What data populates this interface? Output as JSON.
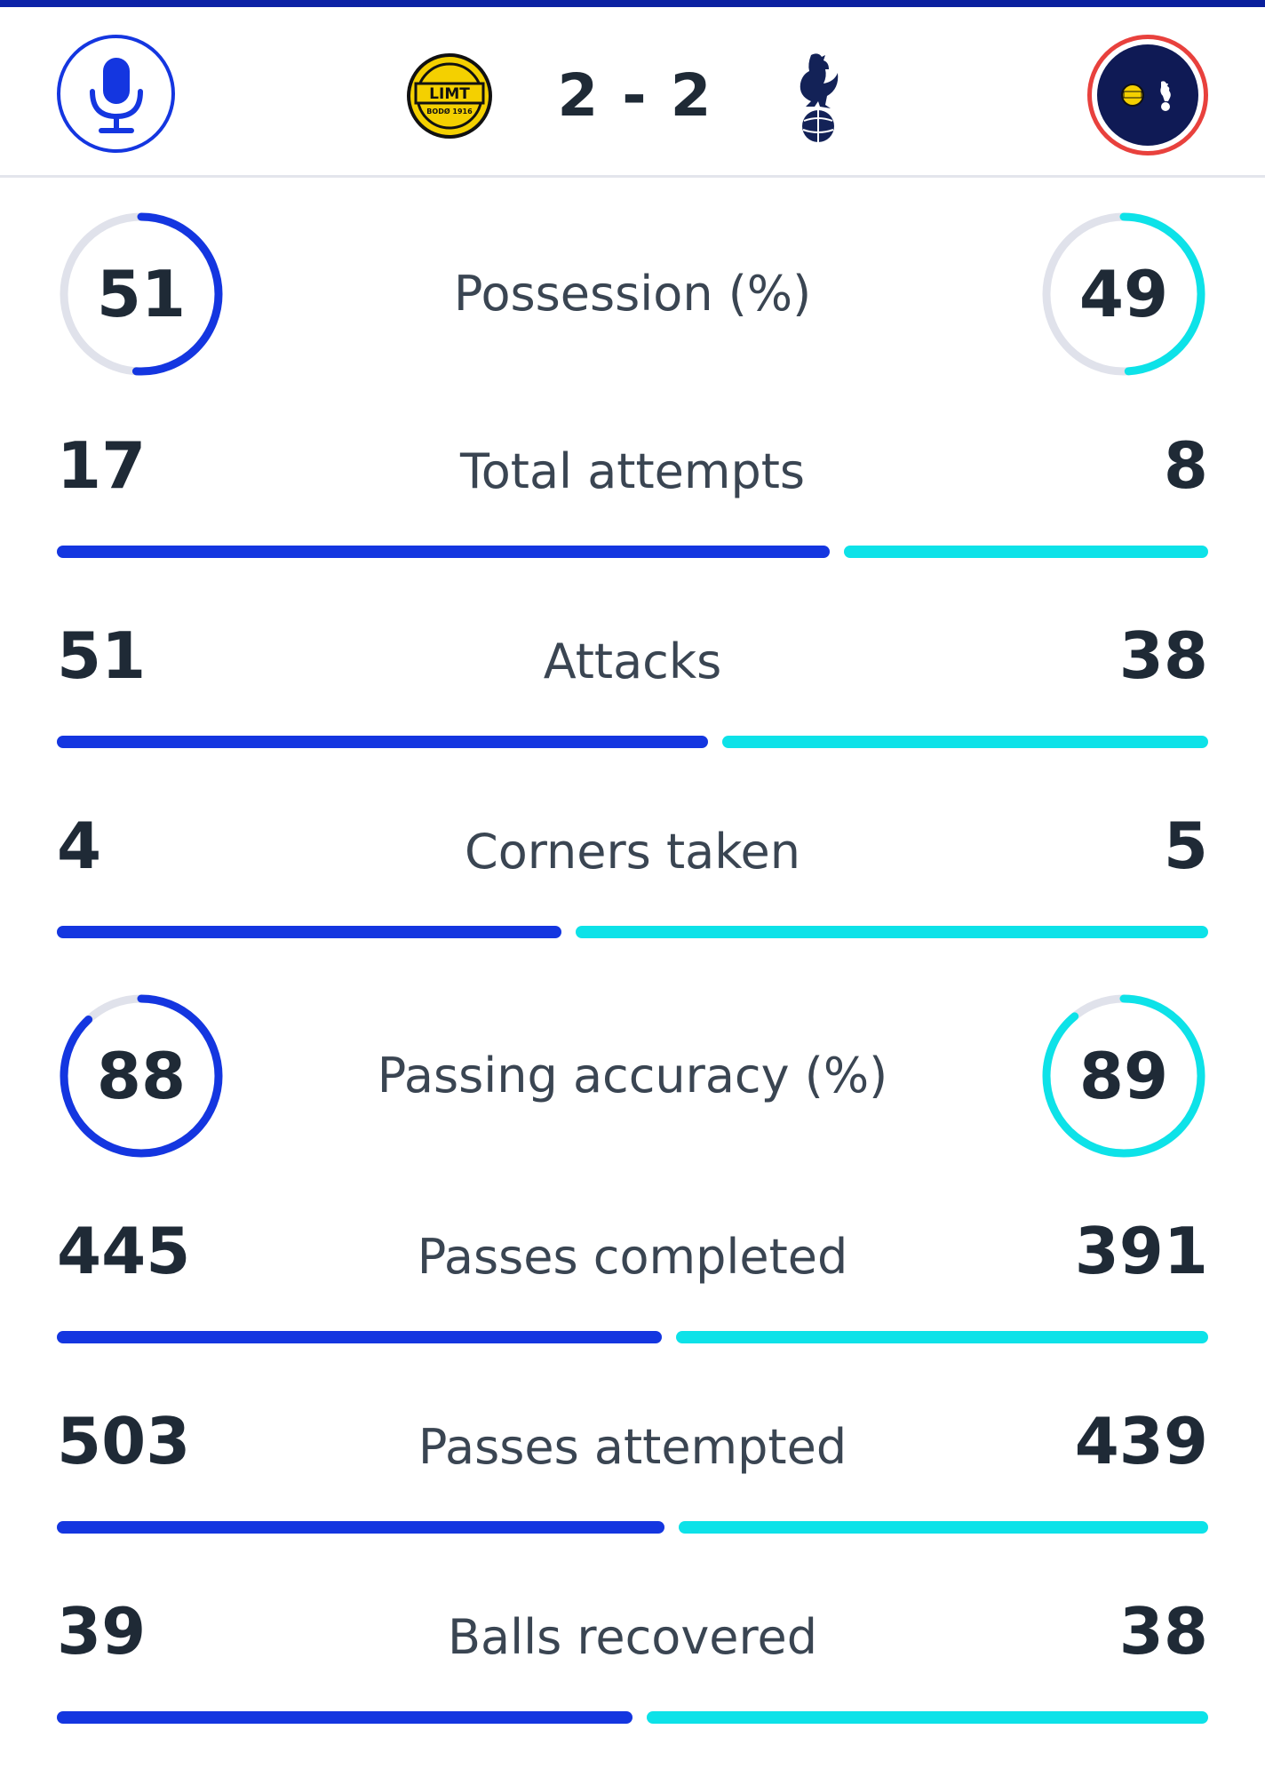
{
  "header": {
    "home_crest_text": "LIMT",
    "home_crest_subtext": "BODØ 1916",
    "score": "2 - 2"
  },
  "colors": {
    "home": "#1436e0",
    "away": "#0de2e8",
    "track": "#e0e2eb",
    "live_ring": "#e8413d"
  },
  "stats": [
    {
      "label": "Possession (%)",
      "home": "51",
      "away": "49",
      "kind": "ring",
      "home_fraction": 0.51,
      "away_fraction": 0.49
    },
    {
      "label": "Total attempts",
      "home": "17",
      "away": "8",
      "kind": "bar",
      "home_share": 0.68,
      "away_share": 0.32
    },
    {
      "label": "Attacks",
      "home": "51",
      "away": "38",
      "kind": "bar",
      "home_share": 0.573,
      "away_share": 0.427
    },
    {
      "label": "Corners taken",
      "home": "4",
      "away": "5",
      "kind": "bar",
      "home_share": 0.444,
      "away_share": 0.556
    },
    {
      "label": "Passing accuracy (%)",
      "home": "88",
      "away": "89",
      "kind": "ring",
      "home_fraction": 0.88,
      "away_fraction": 0.89
    },
    {
      "label": "Passes completed",
      "home": "445",
      "away": "391",
      "kind": "bar",
      "home_share": 0.532,
      "away_share": 0.468
    },
    {
      "label": "Passes attempted",
      "home": "503",
      "away": "439",
      "kind": "bar",
      "home_share": 0.534,
      "away_share": 0.466
    },
    {
      "label": "Balls recovered",
      "home": "39",
      "away": "38",
      "kind": "bar",
      "home_share": 0.506,
      "away_share": 0.494
    }
  ]
}
